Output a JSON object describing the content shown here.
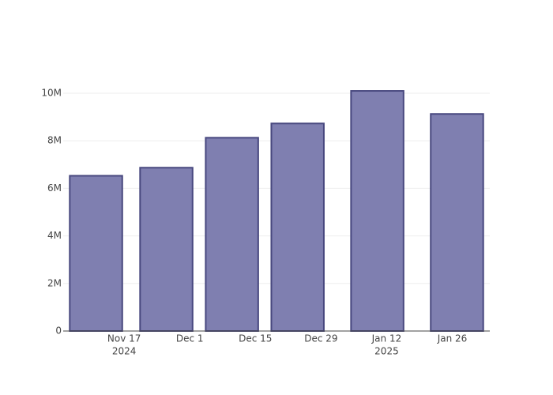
{
  "chart_data": {
    "type": "bar",
    "x": [
      "2024-11-11",
      "2024-11-26",
      "2024-12-10",
      "2024-12-24",
      "2025-01-10",
      "2025-01-27"
    ],
    "values": [
      6530000,
      6870000,
      8130000,
      8730000,
      10100000,
      9130000
    ],
    "color": "#7f7fb0",
    "edge_color": "#48487f",
    "xlim": [
      "2024-11-04",
      "2025-02-03"
    ],
    "xticks": [
      {
        "value": "2024-11-17",
        "label": [
          "Nov 17",
          "2024"
        ]
      },
      {
        "value": "2024-12-01",
        "label": [
          "Dec 1"
        ]
      },
      {
        "value": "2024-12-15",
        "label": [
          "Dec 15"
        ]
      },
      {
        "value": "2024-12-29",
        "label": [
          "Dec 29"
        ]
      },
      {
        "value": "2025-01-12",
        "label": [
          "Jan 12",
          "2025"
        ]
      },
      {
        "value": "2025-01-26",
        "label": [
          "Jan 26"
        ]
      }
    ],
    "ylim": [
      0,
      10600000
    ],
    "yticks": [
      0,
      {
        "value": 2000000,
        "label": "2M"
      },
      {
        "value": 4000000,
        "label": "4M"
      },
      {
        "value": 6000000,
        "label": "6M"
      },
      {
        "value": 8000000,
        "label": "8M"
      },
      {
        "value": 10000000,
        "label": "10M"
      }
    ],
    "grid": true
  }
}
